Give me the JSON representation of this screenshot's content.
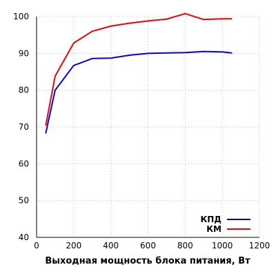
{
  "chart_data": {
    "type": "line",
    "title": "",
    "xlabel": "Выходная мощность блока питания, Вт",
    "ylabel": "",
    "xlim": [
      0,
      1200
    ],
    "ylim": [
      40,
      100
    ],
    "xticks": [
      0,
      200,
      400,
      600,
      800,
      1000,
      1200
    ],
    "yticks": [
      40,
      50,
      60,
      70,
      80,
      90,
      100
    ],
    "grid": true,
    "legend_position": "bottom-right",
    "series": [
      {
        "name": "КПД",
        "color": "#0000ee",
        "points": [
          [
            50,
            68.4
          ],
          [
            100,
            80.0
          ],
          [
            200,
            86.7
          ],
          [
            300,
            88.6
          ],
          [
            400,
            88.7
          ],
          [
            500,
            89.5
          ],
          [
            600,
            90.0
          ],
          [
            700,
            90.1
          ],
          [
            800,
            90.2
          ],
          [
            900,
            90.5
          ],
          [
            1000,
            90.4
          ],
          [
            1050,
            90.1
          ]
        ]
      },
      {
        "name": "КМ",
        "color": "#ee0000",
        "points": [
          [
            50,
            70.5
          ],
          [
            100,
            83.8
          ],
          [
            200,
            92.8
          ],
          [
            300,
            96.0
          ],
          [
            400,
            97.4
          ],
          [
            500,
            98.2
          ],
          [
            600,
            98.8
          ],
          [
            700,
            99.3
          ],
          [
            800,
            100.8
          ],
          [
            900,
            99.2
          ],
          [
            1000,
            99.4
          ],
          [
            1050,
            99.4
          ]
        ]
      }
    ]
  }
}
